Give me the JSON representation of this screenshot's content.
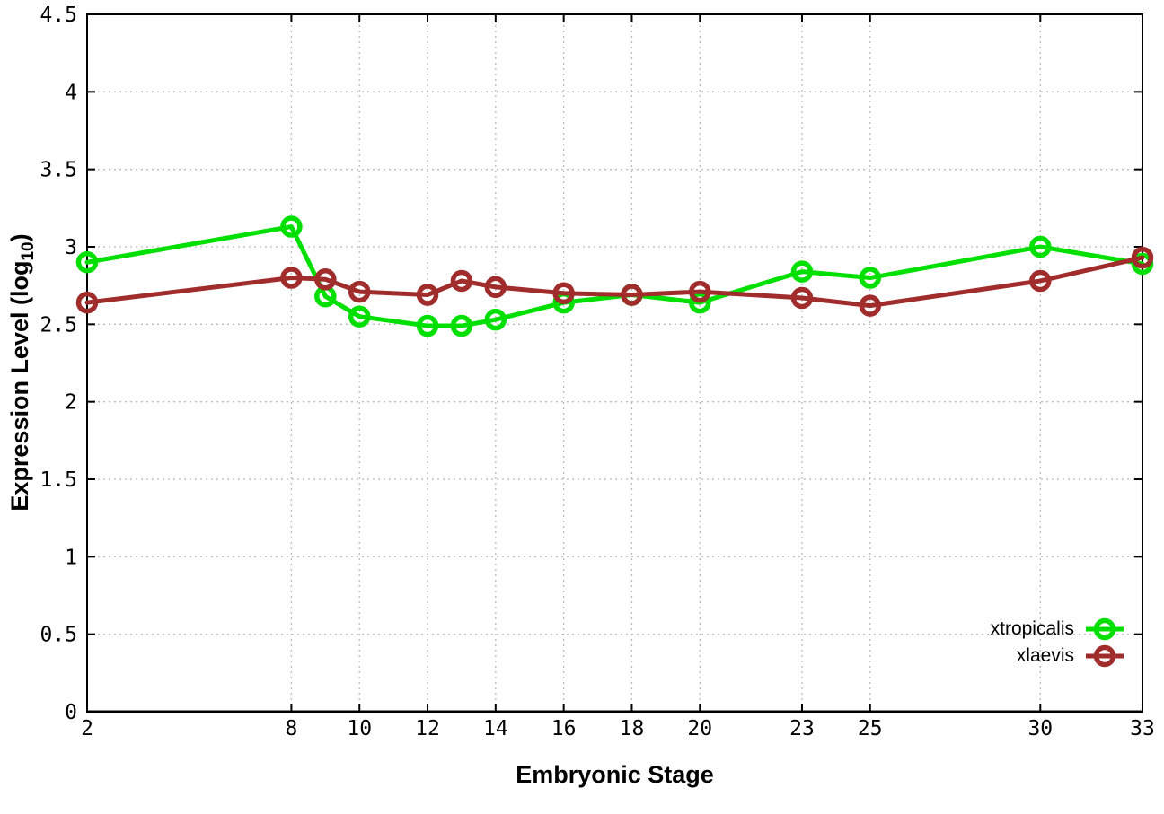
{
  "chart_data": {
    "type": "line",
    "title": "",
    "xlabel": "Embryonic Stage",
    "ylabel": "Expression Level (log10)",
    "xlim": [
      2,
      33
    ],
    "ylim": [
      0,
      4.5
    ],
    "grid": true,
    "legend_position": "bottom-right",
    "x": [
      2,
      8,
      9,
      10,
      12,
      13,
      14,
      16,
      18,
      20,
      23,
      25,
      30,
      33
    ],
    "xtick_values": [
      2,
      8,
      10,
      12,
      14,
      16,
      18,
      20,
      23,
      25,
      30,
      33
    ],
    "xtick_labels": [
      "2",
      "8",
      "10",
      "12",
      "14",
      "16",
      "18",
      "20",
      "23",
      "25",
      "30",
      "33"
    ],
    "ytick_values": [
      0,
      0.5,
      1,
      1.5,
      2,
      2.5,
      3,
      3.5,
      4,
      4.5
    ],
    "ytick_labels": [
      "0",
      "0.5",
      "1",
      "1.5",
      "2",
      "2.5",
      "3",
      "3.5",
      "4",
      "4.5"
    ],
    "series": [
      {
        "name": "xtropicalis",
        "color": "#00e000",
        "values": [
          2.9,
          3.13,
          2.68,
          2.55,
          2.49,
          2.49,
          2.53,
          2.64,
          2.69,
          2.64,
          2.84,
          2.8,
          3.0,
          2.89
        ]
      },
      {
        "name": "xlaevis",
        "color": "#a02c2c",
        "values": [
          2.64,
          2.8,
          2.79,
          2.71,
          2.69,
          2.78,
          2.74,
          2.7,
          2.69,
          2.71,
          2.67,
          2.62,
          2.78,
          2.93
        ]
      }
    ]
  },
  "labels": {
    "xlabel": "Embryonic Stage",
    "ylabel_prefix": "Expression Level (log",
    "ylabel_sub": "10",
    "ylabel_suffix": ")"
  },
  "style": {
    "grid_color": "#bbbbbb",
    "axis_color": "#000000",
    "background": "#ffffff"
  }
}
